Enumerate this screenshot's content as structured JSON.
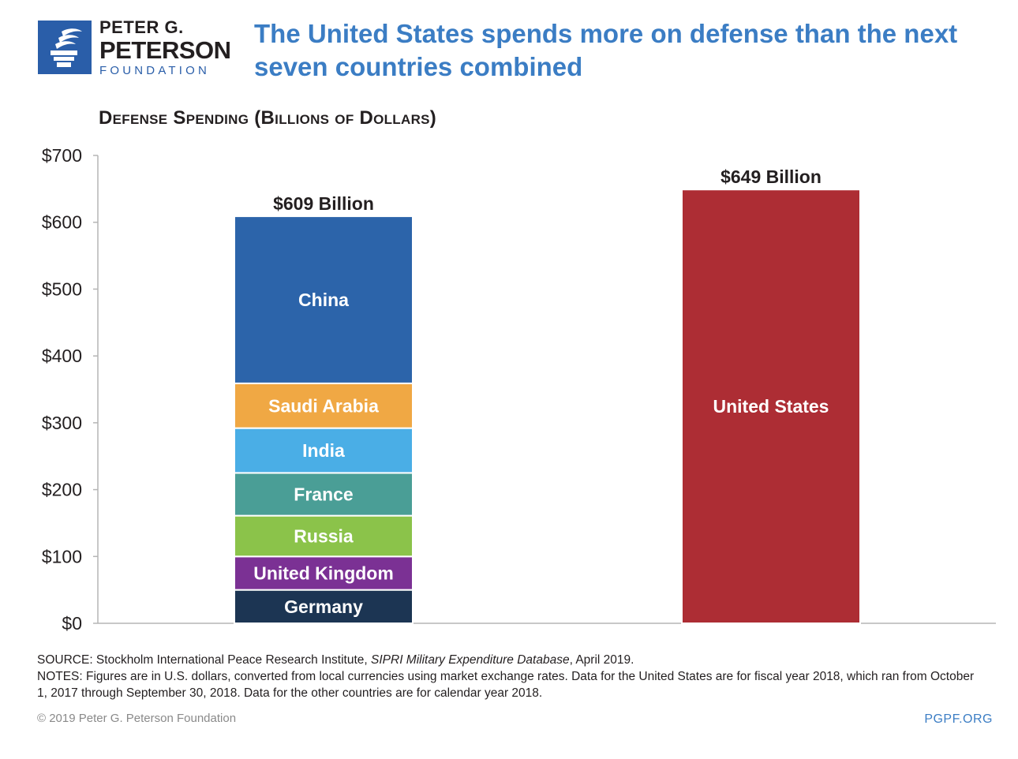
{
  "logo": {
    "line1": "PETER G.",
    "line2": "PETERSON",
    "line3": "FOUNDATION"
  },
  "headline": "The United States spends more on defense than the next seven countries combined",
  "subtitle": "Defense Spending (Billions of Dollars)",
  "chart_data": {
    "type": "bar",
    "stacked": true,
    "ylim": [
      0,
      700
    ],
    "yticks": [
      "$0",
      "$100",
      "$200",
      "$300",
      "$400",
      "$500",
      "$600",
      "$700"
    ],
    "grid": false,
    "bars": [
      {
        "total_label": "$609 Billion",
        "total": 609,
        "segments": [
          {
            "name": "Germany",
            "value": 50,
            "color": "#1c3553"
          },
          {
            "name": "United Kingdom",
            "value": 50,
            "color": "#7b3194"
          },
          {
            "name": "Russia",
            "value": 61,
            "color": "#8bc34a"
          },
          {
            "name": "France",
            "value": 64,
            "color": "#4a9e96"
          },
          {
            "name": "India",
            "value": 67,
            "color": "#4aaee6"
          },
          {
            "name": "Saudi Arabia",
            "value": 67,
            "color": "#f0a844"
          },
          {
            "name": "China",
            "value": 250,
            "color": "#2c64aa"
          }
        ]
      },
      {
        "total_label": "$649 Billion",
        "total": 649,
        "segments": [
          {
            "name": "United States",
            "value": 649,
            "color": "#ad2d34"
          }
        ]
      }
    ]
  },
  "footer": {
    "source_prefix": "SOURCE: Stockholm International Peace Research Institute, ",
    "source_italic": "SIPRI Military Expenditure Database",
    "source_suffix": ", April 2019.",
    "notes": "NOTES: Figures are in U.S. dollars, converted from local currencies using market exchange rates. Data for the United States are for fiscal year 2018, which ran from October 1, 2017 through September 30, 2018. Data for the other countries are for calendar year 2018.",
    "copyright": "© 2019 Peter G. Peterson Foundation",
    "site": "PGPF.ORG"
  }
}
